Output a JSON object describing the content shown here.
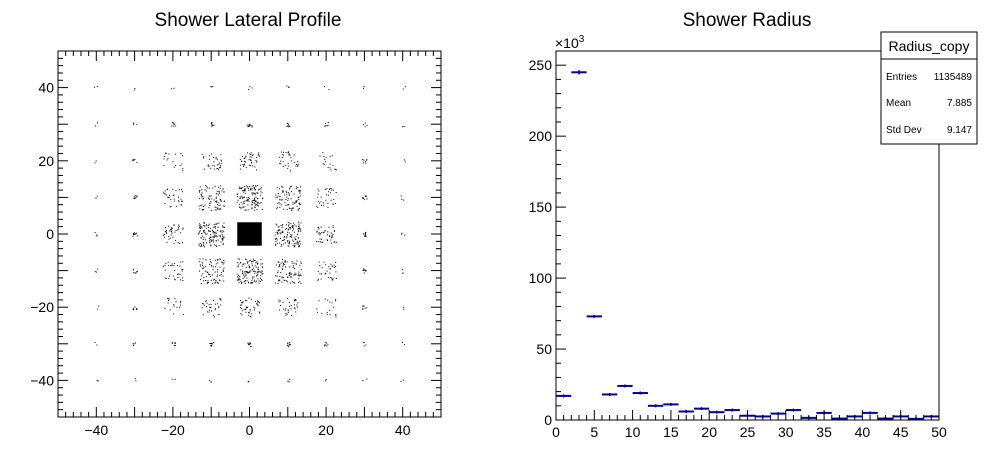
{
  "chart_data": [
    {
      "type": "scatter",
      "title": "Shower Lateral Profile",
      "xlabel": "",
      "ylabel": "",
      "xlim": [
        -50,
        50
      ],
      "ylim": [
        -50,
        50
      ],
      "x_tick_labels": [
        "−40",
        "−20",
        "0",
        "20",
        "40"
      ],
      "x_tick_values": [
        -40,
        -20,
        0,
        20,
        40
      ],
      "y_tick_labels": [
        "−40",
        "−20",
        "0",
        "20",
        "40"
      ],
      "y_tick_values": [
        -40,
        -20,
        0,
        20,
        40
      ],
      "grid": false,
      "cell_pitch": 10,
      "cells": [
        {
          "x": 0,
          "y": 0,
          "density": 1.0
        },
        {
          "x": 0,
          "y": 10,
          "density": 0.6
        },
        {
          "x": 0,
          "y": -10,
          "density": 0.6
        },
        {
          "x": 10,
          "y": 0,
          "density": 0.6
        },
        {
          "x": -10,
          "y": 0,
          "density": 0.6
        },
        {
          "x": 10,
          "y": 10,
          "density": 0.4
        },
        {
          "x": -10,
          "y": 10,
          "density": 0.4
        },
        {
          "x": 10,
          "y": -10,
          "density": 0.4
        },
        {
          "x": -10,
          "y": -10,
          "density": 0.4
        },
        {
          "x": 0,
          "y": 20,
          "density": 0.2
        },
        {
          "x": 0,
          "y": -20,
          "density": 0.2
        },
        {
          "x": 20,
          "y": 0,
          "density": 0.2
        },
        {
          "x": -20,
          "y": 0,
          "density": 0.2
        },
        {
          "x": 20,
          "y": 10,
          "density": 0.15
        },
        {
          "x": -20,
          "y": 10,
          "density": 0.15
        },
        {
          "x": 20,
          "y": -10,
          "density": 0.15
        },
        {
          "x": -20,
          "y": -10,
          "density": 0.15
        },
        {
          "x": 10,
          "y": 20,
          "density": 0.15
        },
        {
          "x": -10,
          "y": 20,
          "density": 0.15
        },
        {
          "x": 10,
          "y": -20,
          "density": 0.15
        },
        {
          "x": -10,
          "y": -20,
          "density": 0.15
        },
        {
          "x": 20,
          "y": 20,
          "density": 0.08
        },
        {
          "x": -20,
          "y": 20,
          "density": 0.08
        },
        {
          "x": 20,
          "y": -20,
          "density": 0.08
        },
        {
          "x": -20,
          "y": -20,
          "density": 0.08
        },
        {
          "x": 30,
          "y": 0,
          "density": 0.05
        },
        {
          "x": -30,
          "y": 0,
          "density": 0.05
        },
        {
          "x": 0,
          "y": 30,
          "density": 0.05
        },
        {
          "x": 0,
          "y": -30,
          "density": 0.05
        },
        {
          "x": 30,
          "y": 10,
          "density": 0.04
        },
        {
          "x": -30,
          "y": 10,
          "density": 0.04
        },
        {
          "x": 30,
          "y": -10,
          "density": 0.04
        },
        {
          "x": -30,
          "y": -10,
          "density": 0.04
        },
        {
          "x": 10,
          "y": 30,
          "density": 0.04
        },
        {
          "x": -10,
          "y": 30,
          "density": 0.04
        },
        {
          "x": 10,
          "y": -30,
          "density": 0.04
        },
        {
          "x": -10,
          "y": -30,
          "density": 0.04
        },
        {
          "x": 30,
          "y": 20,
          "density": 0.03
        },
        {
          "x": -30,
          "y": 20,
          "density": 0.03
        },
        {
          "x": 30,
          "y": -20,
          "density": 0.03
        },
        {
          "x": -30,
          "y": -20,
          "density": 0.03
        },
        {
          "x": 20,
          "y": 30,
          "density": 0.03
        },
        {
          "x": -20,
          "y": 30,
          "density": 0.03
        },
        {
          "x": 20,
          "y": -30,
          "density": 0.03
        },
        {
          "x": -20,
          "y": -30,
          "density": 0.03
        },
        {
          "x": 30,
          "y": 30,
          "density": 0.02
        },
        {
          "x": -30,
          "y": 30,
          "density": 0.02
        },
        {
          "x": 30,
          "y": -30,
          "density": 0.02
        },
        {
          "x": -30,
          "y": -30,
          "density": 0.02
        },
        {
          "x": 40,
          "y": 0,
          "density": 0.015
        },
        {
          "x": -40,
          "y": 0,
          "density": 0.015
        },
        {
          "x": 0,
          "y": 40,
          "density": 0.015
        },
        {
          "x": 0,
          "y": -40,
          "density": 0.015
        },
        {
          "x": 40,
          "y": 10,
          "density": 0.012
        },
        {
          "x": -40,
          "y": 10,
          "density": 0.012
        },
        {
          "x": 40,
          "y": -10,
          "density": 0.012
        },
        {
          "x": -40,
          "y": -10,
          "density": 0.012
        },
        {
          "x": 10,
          "y": 40,
          "density": 0.012
        },
        {
          "x": -10,
          "y": 40,
          "density": 0.012
        },
        {
          "x": 10,
          "y": -40,
          "density": 0.012
        },
        {
          "x": -10,
          "y": -40,
          "density": 0.012
        },
        {
          "x": 40,
          "y": 20,
          "density": 0.01
        },
        {
          "x": -40,
          "y": 20,
          "density": 0.01
        },
        {
          "x": 40,
          "y": -20,
          "density": 0.01
        },
        {
          "x": -40,
          "y": -20,
          "density": 0.01
        },
        {
          "x": 20,
          "y": 40,
          "density": 0.01
        },
        {
          "x": -20,
          "y": 40,
          "density": 0.01
        },
        {
          "x": 20,
          "y": -40,
          "density": 0.01
        },
        {
          "x": -20,
          "y": -40,
          "density": 0.01
        },
        {
          "x": 40,
          "y": 30,
          "density": 0.008
        },
        {
          "x": -40,
          "y": 30,
          "density": 0.008
        },
        {
          "x": 40,
          "y": -30,
          "density": 0.008
        },
        {
          "x": -40,
          "y": -30,
          "density": 0.008
        },
        {
          "x": 30,
          "y": 40,
          "density": 0.008
        },
        {
          "x": -30,
          "y": 40,
          "density": 0.008
        },
        {
          "x": 30,
          "y": -40,
          "density": 0.008
        },
        {
          "x": -30,
          "y": -40,
          "density": 0.008
        },
        {
          "x": 40,
          "y": 40,
          "density": 0.006
        },
        {
          "x": -40,
          "y": 40,
          "density": 0.006
        },
        {
          "x": 40,
          "y": -40,
          "density": 0.006
        },
        {
          "x": -40,
          "y": -40,
          "density": 0.006
        }
      ],
      "marker_color": "#000000"
    },
    {
      "type": "bar",
      "title": "Shower Radius",
      "xlabel": "",
      "ylabel": "",
      "xlim": [
        0,
        50
      ],
      "ylim": [
        0,
        260000
      ],
      "y_exponent_label": "×10",
      "y_exponent_sup": "3",
      "x_tick_labels": [
        "0",
        "5",
        "10",
        "15",
        "20",
        "25",
        "30",
        "35",
        "40",
        "45",
        "50"
      ],
      "x_tick_values": [
        0,
        5,
        10,
        15,
        20,
        25,
        30,
        35,
        40,
        45,
        50
      ],
      "y_tick_labels": [
        "0",
        "50",
        "100",
        "150",
        "200",
        "250"
      ],
      "y_tick_values": [
        0,
        50000,
        100000,
        150000,
        200000,
        250000
      ],
      "bin_width": 2,
      "bins_x": [
        1,
        3,
        5,
        7,
        9,
        11,
        13,
        15,
        17,
        19,
        21,
        23,
        25,
        27,
        29,
        31,
        33,
        35,
        37,
        39,
        41,
        43,
        45,
        47,
        49
      ],
      "values": [
        17000,
        245000,
        73000,
        18000,
        24000,
        19000,
        10000,
        11000,
        6000,
        8000,
        5500,
        7000,
        3000,
        2500,
        4500,
        7000,
        1500,
        5000,
        1000,
        2500,
        5000,
        1000,
        2500,
        800,
        2500
      ],
      "errors": [
        130,
        1500,
        270,
        130,
        155,
        140,
        100,
        105,
        80,
        90,
        75,
        85,
        55,
        50,
        67,
        85,
        40,
        70,
        30,
        50,
        70,
        30,
        50,
        28,
        50
      ],
      "marker_color": "#000099",
      "grid": false,
      "stats": {
        "title": "Radius_copy",
        "rows": [
          {
            "label": "Entries",
            "value": "1135489"
          },
          {
            "label": "Mean",
            "value": "7.885"
          },
          {
            "label": "Std Dev",
            "value": "9.147"
          }
        ]
      }
    }
  ]
}
